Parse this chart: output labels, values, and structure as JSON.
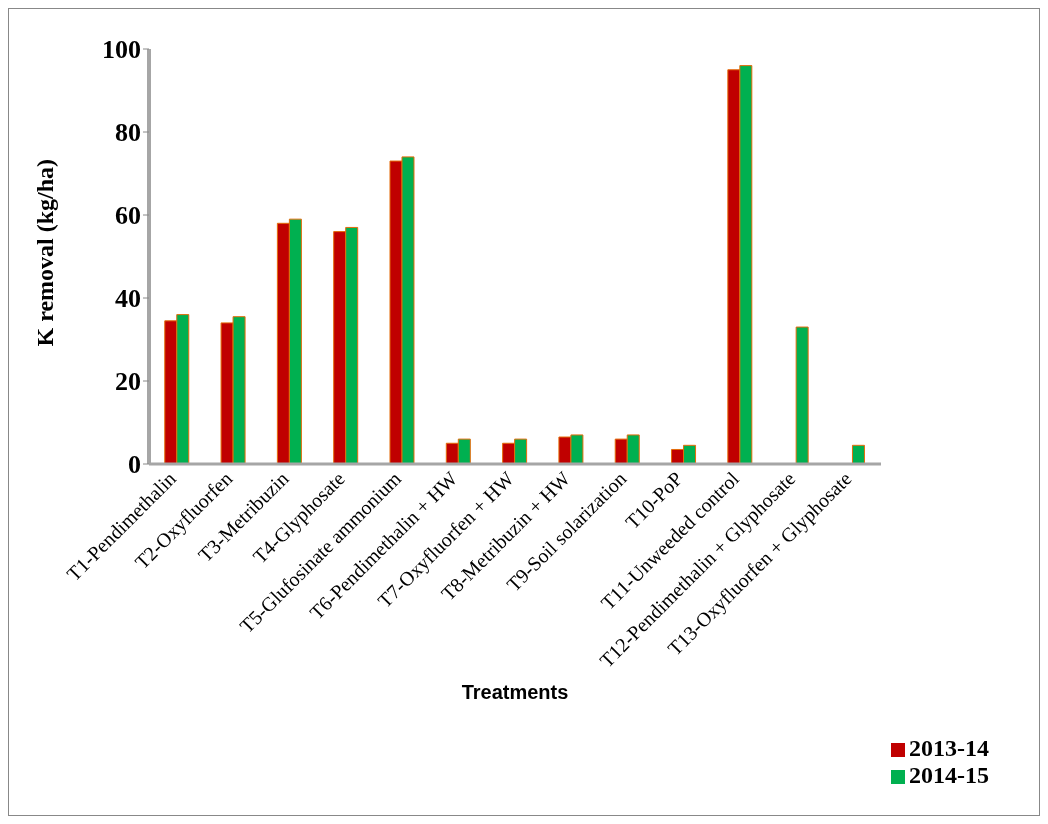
{
  "chart_data": {
    "type": "bar",
    "xlabel": "Treatments",
    "ylabel": "K removal (kg/ha)",
    "categories": [
      "T1-Pendimethalin",
      "T2-Oxyfluorfen",
      "T3-Metribuzin",
      "T4-Glyphosate",
      "T5-Glufosinate ammonium",
      "T6-Pendimethalin + HW",
      "T7-Oxyfluorfen + HW",
      "T8-Metribuzin + HW",
      "T9-Soil solarization",
      "T10-PoP",
      "T11-Unweeded control",
      "T12-Pendimethalin + Glyphosate",
      "T13-Oxyfluorfen + Glyphosate"
    ],
    "series": [
      {
        "name": "2013-14",
        "color": "#c00000",
        "values": [
          34.5,
          34,
          58,
          56,
          73,
          5,
          5,
          6.5,
          6,
          3.5,
          95,
          0,
          0
        ]
      },
      {
        "name": "2014-15",
        "color": "#00b050",
        "values": [
          36,
          35.5,
          59,
          57,
          74,
          6,
          6,
          7,
          7,
          4.5,
          96,
          33,
          4.5
        ]
      }
    ],
    "ylim": [
      0,
      100
    ],
    "yticks": [
      0,
      20,
      40,
      60,
      80,
      100
    ],
    "grid": false,
    "legend": "bottom right"
  }
}
